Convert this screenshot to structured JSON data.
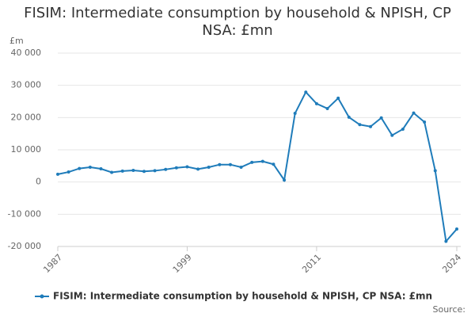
{
  "chart_data": {
    "type": "line",
    "title": "FISIM: Intermediate consumption by household & NPISH, CP NSA: £mn",
    "y_label": "£m",
    "source": "Source:",
    "x": [
      1987,
      1988,
      1989,
      1990,
      1991,
      1992,
      1993,
      1994,
      1995,
      1996,
      1997,
      1998,
      1999,
      2000,
      2001,
      2002,
      2003,
      2004,
      2005,
      2006,
      2007,
      2008,
      2009,
      2010,
      2011,
      2012,
      2013,
      2014,
      2015,
      2016,
      2017,
      2018,
      2019,
      2020,
      2021,
      2022,
      2023,
      2024
    ],
    "series": [
      {
        "name": "FISIM: Intermediate consumption by household & NPISH, CP NSA: £mn",
        "color": "#1f7cba",
        "values": [
          2400,
          3100,
          4200,
          4600,
          4100,
          3000,
          3400,
          3600,
          3300,
          3500,
          3900,
          4400,
          4700,
          4000,
          4600,
          5400,
          5400,
          4600,
          6100,
          6400,
          5500,
          600,
          21300,
          27900,
          24300,
          22800,
          26000,
          20100,
          17800,
          17200,
          19900,
          14500,
          16400,
          21400,
          18600,
          3500,
          -18400,
          -14600
        ]
      }
    ],
    "xlim": [
      1987,
      2024
    ],
    "xticks": [
      1987,
      1999,
      2011,
      2024
    ],
    "ylim": [
      -20000,
      40000
    ],
    "yticks": [
      {
        "value": -20000,
        "label": "-20 000"
      },
      {
        "value": -10000,
        "label": "-10 000"
      },
      0,
      {
        "value": 10000,
        "label": "10 000"
      },
      {
        "value": 20000,
        "label": "20 000"
      },
      {
        "value": 30000,
        "label": "30 000"
      },
      {
        "value": 40000,
        "label": "40 000"
      }
    ],
    "grid": true
  }
}
